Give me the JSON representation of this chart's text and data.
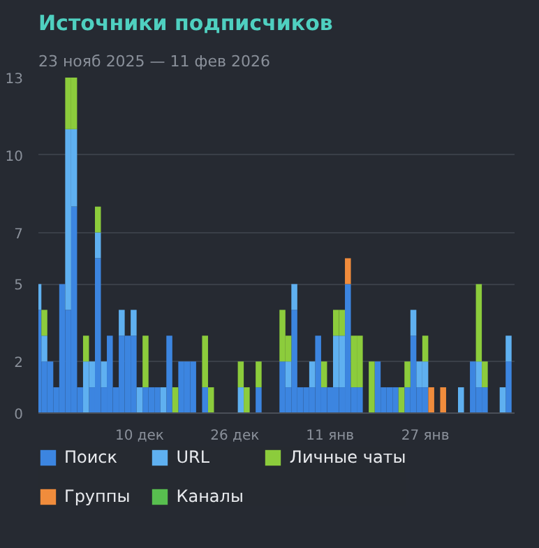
{
  "chart_data": {
    "type": "bar",
    "stacked": true,
    "title": "Источники подписчиков",
    "subtitle": "23 нояб 2025 — 11 фев 2026",
    "x": [
      "2025-11-23",
      "2025-11-24",
      "2025-11-25",
      "2025-11-26",
      "2025-11-27",
      "2025-11-28",
      "2025-11-29",
      "2025-11-30",
      "2025-12-01",
      "2025-12-02",
      "2025-12-03",
      "2025-12-04",
      "2025-12-05",
      "2025-12-06",
      "2025-12-07",
      "2025-12-08",
      "2025-12-09",
      "2025-12-10",
      "2025-12-11",
      "2025-12-12",
      "2025-12-13",
      "2025-12-14",
      "2025-12-15",
      "2025-12-16",
      "2025-12-17",
      "2025-12-18",
      "2025-12-19",
      "2025-12-20",
      "2025-12-21",
      "2025-12-22",
      "2025-12-23",
      "2025-12-24",
      "2025-12-25",
      "2025-12-26",
      "2025-12-27",
      "2025-12-28",
      "2025-12-29",
      "2025-12-30",
      "2025-12-31",
      "2026-01-01",
      "2026-01-02",
      "2026-01-03",
      "2026-01-04",
      "2026-01-05",
      "2026-01-06",
      "2026-01-07",
      "2026-01-08",
      "2026-01-09",
      "2026-01-10",
      "2026-01-11",
      "2026-01-12",
      "2026-01-13",
      "2026-01-14",
      "2026-01-15",
      "2026-01-16",
      "2026-01-17",
      "2026-01-18",
      "2026-01-19",
      "2026-01-20",
      "2026-01-21",
      "2026-01-22",
      "2026-01-23",
      "2026-01-24",
      "2026-01-25",
      "2026-01-26",
      "2026-01-27",
      "2026-01-28",
      "2026-01-29",
      "2026-01-30",
      "2026-01-31",
      "2026-02-01",
      "2026-02-02",
      "2026-02-03",
      "2026-02-04",
      "2026-02-05",
      "2026-02-06",
      "2026-02-07",
      "2026-02-08",
      "2026-02-09",
      "2026-02-10",
      "2026-02-11"
    ],
    "series": [
      {
        "name": "Поиск",
        "color": "#3c85e0",
        "values": [
          4,
          2,
          2,
          1,
          5,
          4,
          8,
          1,
          0,
          1,
          6,
          1,
          3,
          1,
          3,
          3,
          3,
          0,
          1,
          1,
          1,
          0,
          3,
          0,
          2,
          2,
          2,
          0,
          1,
          0,
          0,
          0,
          0,
          0,
          0,
          0,
          0,
          1,
          0,
          0,
          0,
          2,
          1,
          4,
          1,
          1,
          1,
          3,
          1,
          1,
          1,
          1,
          5,
          1,
          1,
          0,
          0,
          2,
          1,
          1,
          1,
          0,
          1,
          3,
          1,
          1,
          0,
          0,
          0,
          0,
          0,
          0,
          0,
          2,
          1,
          1,
          0,
          0,
          0,
          2,
          0
        ]
      },
      {
        "name": "URL",
        "color": "#5fb0f0",
        "values": [
          1,
          1,
          0,
          0,
          0,
          7,
          3,
          0,
          2,
          1,
          1,
          1,
          0,
          0,
          1,
          0,
          1,
          1,
          0,
          0,
          0,
          1,
          0,
          0,
          0,
          0,
          0,
          0,
          0,
          0,
          0,
          0,
          0,
          0,
          1,
          0,
          0,
          0,
          0,
          0,
          0,
          0,
          1,
          1,
          0,
          0,
          1,
          0,
          0,
          0,
          2,
          2,
          0,
          0,
          0,
          0,
          0,
          0,
          0,
          0,
          0,
          0,
          0,
          1,
          1,
          1,
          0,
          0,
          0,
          0,
          0,
          1,
          0,
          0,
          1,
          0,
          0,
          0,
          1,
          1,
          0
        ]
      },
      {
        "name": "Личные чаты",
        "color": "#8ccc3c",
        "values": [
          0,
          1,
          0,
          0,
          0,
          2,
          2,
          0,
          1,
          0,
          1,
          0,
          0,
          0,
          0,
          0,
          0,
          0,
          2,
          0,
          0,
          0,
          0,
          1,
          0,
          0,
          0,
          0,
          2,
          1,
          0,
          0,
          0,
          0,
          1,
          1,
          0,
          1,
          0,
          0,
          0,
          2,
          1,
          0,
          0,
          0,
          0,
          0,
          1,
          0,
          1,
          1,
          0,
          2,
          2,
          0,
          2,
          0,
          0,
          0,
          0,
          1,
          1,
          0,
          0,
          1,
          0,
          0,
          0,
          0,
          0,
          0,
          0,
          0,
          3,
          1,
          0,
          0,
          0,
          0,
          0
        ]
      },
      {
        "name": "Группы",
        "color": "#f08c3c",
        "values": [
          0,
          0,
          0,
          0,
          0,
          0,
          0,
          0,
          0,
          0,
          0,
          0,
          0,
          0,
          0,
          0,
          0,
          0,
          0,
          0,
          0,
          0,
          0,
          0,
          0,
          0,
          0,
          0,
          0,
          0,
          0,
          0,
          0,
          0,
          0,
          0,
          0,
          0,
          0,
          0,
          0,
          0,
          0,
          0,
          0,
          0,
          0,
          0,
          0,
          0,
          0,
          0,
          1,
          0,
          0,
          0,
          0,
          0,
          0,
          0,
          0,
          0,
          0,
          0,
          0,
          0,
          1,
          0,
          1,
          0,
          0,
          0,
          0,
          0,
          0,
          0,
          0,
          0,
          0,
          0,
          0
        ]
      },
      {
        "name": "Каналы",
        "color": "#58bf4f",
        "values": [
          0,
          0,
          0,
          0,
          0,
          0,
          0,
          0,
          0,
          0,
          0,
          0,
          0,
          0,
          0,
          0,
          0,
          0,
          0,
          0,
          0,
          0,
          0,
          0,
          0,
          0,
          0,
          0,
          0,
          0,
          0,
          0,
          0,
          0,
          0,
          0,
          0,
          0,
          0,
          0,
          0,
          0,
          0,
          0,
          0,
          0,
          0,
          0,
          0,
          0,
          0,
          0,
          0,
          0,
          0,
          0,
          0,
          0,
          0,
          0,
          0,
          0,
          0,
          0,
          0,
          0,
          0,
          0,
          0,
          0,
          0,
          0,
          0,
          0,
          0,
          0,
          0,
          0,
          0,
          0,
          0
        ]
      }
    ],
    "xlim": [
      "2025-11-23",
      "2026-02-11"
    ],
    "xticks": [
      {
        "value": "2025-12-10",
        "label": "10 дек"
      },
      {
        "value": "2025-12-26",
        "label": "26 дек"
      },
      {
        "value": "2026-01-11",
        "label": "11 янв"
      },
      {
        "value": "2026-01-27",
        "label": "27 янв"
      }
    ],
    "ylim": [
      0,
      13
    ],
    "yticks": [
      0,
      2,
      5,
      7,
      10,
      13
    ],
    "grid": "y",
    "legend": "bottom"
  }
}
